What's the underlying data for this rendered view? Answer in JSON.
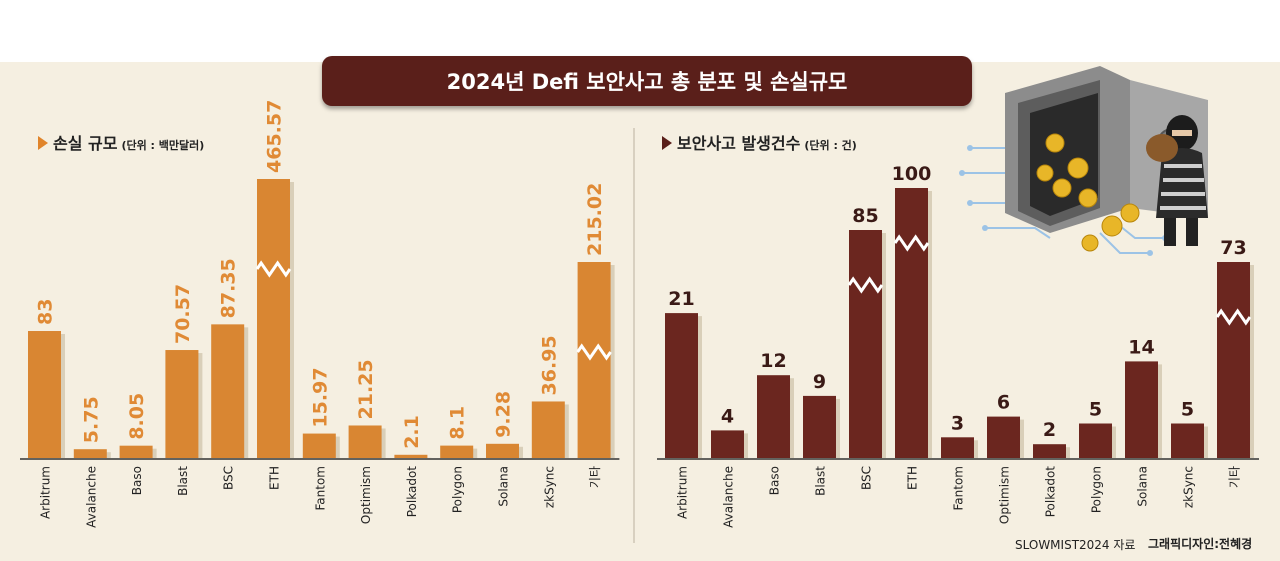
{
  "title": "2024년 Defi 보안사고 총 분포 및 손실규모",
  "colors": {
    "loss_bar": "#d98632",
    "count_bar": "#6b261f",
    "banner": "#5a1f1a",
    "background": "#f5efe1"
  },
  "illustration": "thief-robbing-safe-with-bitcoins",
  "chart_data": [
    {
      "type": "bar",
      "title": "손실 규모",
      "unit": "(단위 : 백만달러)",
      "categories": [
        "Arbitrum",
        "Avalanche",
        "Baso",
        "Blast",
        "BSC",
        "ETH",
        "Fantom",
        "Optimism",
        "Polkadot",
        "Polygon",
        "Solana",
        "zkSync",
        "기타"
      ],
      "values": [
        83,
        5.75,
        8.05,
        70.57,
        87.35,
        465.57,
        15.97,
        21.25,
        2.1,
        8.1,
        9.28,
        36.95,
        215.02
      ],
      "labels": [
        "83",
        "5.75",
        "8.05",
        "70.57",
        "87.35",
        "465.57",
        "15.97",
        "21.25",
        "2.1",
        "8.1",
        "9.28",
        "36.95",
        "215.02"
      ],
      "broken_axis_bars": [
        "ETH",
        "기타"
      ],
      "grid": false
    },
    {
      "type": "bar",
      "title": "보안사고 발생건수",
      "unit": "(단위 : 건)",
      "categories": [
        "Arbitrum",
        "Avalanche",
        "Baso",
        "Blast",
        "BSC",
        "ETH",
        "Fantom",
        "Optimism",
        "Polkadot",
        "Polygon",
        "Solana",
        "zkSync",
        "기타"
      ],
      "values": [
        21,
        4,
        12,
        9,
        85,
        100,
        3,
        6,
        2,
        5,
        14,
        5,
        73
      ],
      "labels": [
        "21",
        "4",
        "12",
        "9",
        "85",
        "100",
        "3",
        "6",
        "2",
        "5",
        "14",
        "5",
        "73"
      ],
      "broken_axis_bars": [
        "BSC",
        "ETH",
        "기타"
      ],
      "grid": false
    }
  ],
  "footer": {
    "source": "SLOWMIST2024 자료",
    "credit": "그래픽디자인:전혜경"
  }
}
